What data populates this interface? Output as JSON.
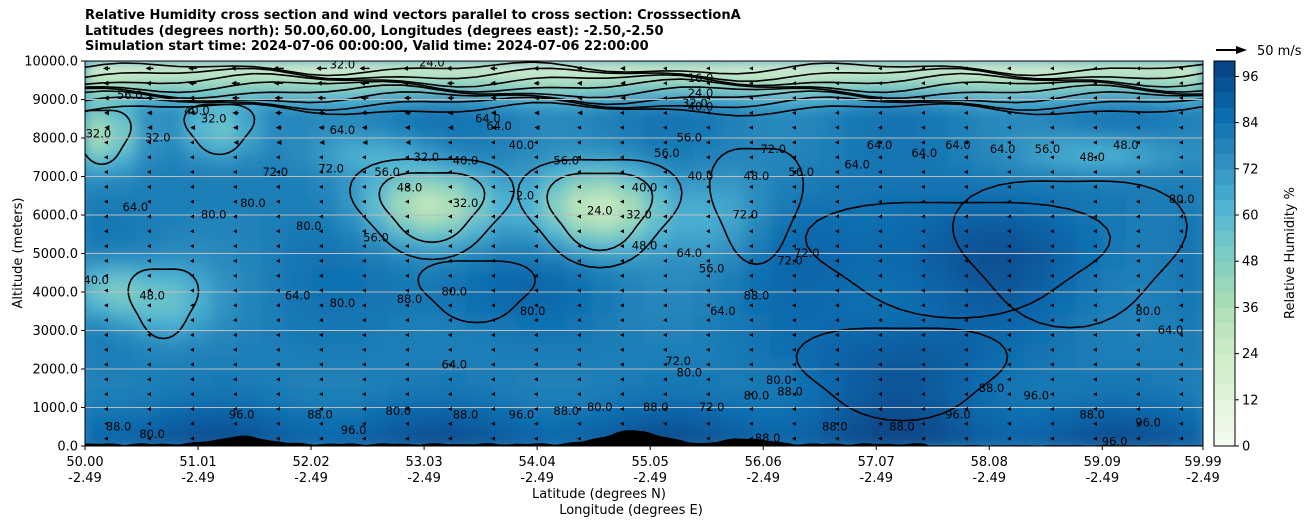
{
  "title_lines": [
    "Relative Humidity cross section and wind vectors parallel to cross section: CrosssectionA",
    "Latitudes (degrees north): 50.00,60.00, Longitudes (degrees east): -2.50,-2.50",
    "Simulation start time: 2024-07-06 00:00:00, Valid time: 2024-07-06 22:00:00"
  ],
  "chart_data": {
    "type": "contour_cross_section",
    "x_ticks": [
      {
        "lat": "50.00",
        "lon": "-2.49"
      },
      {
        "lat": "51.01",
        "lon": "-2.49"
      },
      {
        "lat": "52.02",
        "lon": "-2.49"
      },
      {
        "lat": "53.03",
        "lon": "-2.49"
      },
      {
        "lat": "54.04",
        "lon": "-2.49"
      },
      {
        "lat": "55.05",
        "lon": "-2.49"
      },
      {
        "lat": "56.06",
        "lon": "-2.49"
      },
      {
        "lat": "57.07",
        "lon": "-2.49"
      },
      {
        "lat": "58.08",
        "lon": "-2.49"
      },
      {
        "lat": "59.09",
        "lon": "-2.49"
      },
      {
        "lat": "59.99",
        "lon": "-2.49"
      }
    ],
    "xlim": [
      50.0,
      59.99
    ],
    "xlabel_line1": "Latitude (degrees N)",
    "xlabel_line2": "Longitude (degrees E)",
    "ylabel": "Altitude (meters)",
    "ylim": [
      0,
      10000
    ],
    "y_ticks": [
      "0.0",
      "1000.0",
      "2000.0",
      "3000.0",
      "4000.0",
      "5000.0",
      "6000.0",
      "7000.0",
      "8000.0",
      "9000.0",
      "10000.0"
    ],
    "grid": "horizontal",
    "colorbar": {
      "label": "Relative Humidity %",
      "min": 0,
      "max": 100,
      "levels_step": 4,
      "ticks": [
        "0",
        "12",
        "24",
        "36",
        "48",
        "60",
        "72",
        "84",
        "96"
      ],
      "colormap": "GnBu",
      "stops": [
        "#f7fcf0",
        "#e0f3db",
        "#ccebc5",
        "#a8ddb5",
        "#7bccc4",
        "#4eb3d3",
        "#2b8cbe",
        "#0868ac",
        "#084081"
      ]
    },
    "wind_key": {
      "label": "50 m/s",
      "value": 50
    },
    "contour_labels": [
      {
        "lat": 50.12,
        "z": 8100,
        "text": "32.0"
      },
      {
        "lat": 50.4,
        "z": 9100,
        "text": "56.0"
      },
      {
        "lat": 50.65,
        "z": 8000,
        "text": "32.0"
      },
      {
        "lat": 51.0,
        "z": 8700,
        "text": "40.0"
      },
      {
        "lat": 51.15,
        "z": 8500,
        "text": "32.0"
      },
      {
        "lat": 50.45,
        "z": 6200,
        "text": "64.0"
      },
      {
        "lat": 51.15,
        "z": 6000,
        "text": "80.0"
      },
      {
        "lat": 51.5,
        "z": 6300,
        "text": "80.0"
      },
      {
        "lat": 52.2,
        "z": 7200,
        "text": "72.0"
      },
      {
        "lat": 51.7,
        "z": 7100,
        "text": "72.0"
      },
      {
        "lat": 52.3,
        "z": 8200,
        "text": "64.0"
      },
      {
        "lat": 50.1,
        "z": 4300,
        "text": "40.0"
      },
      {
        "lat": 50.6,
        "z": 3900,
        "text": "48.0"
      },
      {
        "lat": 51.9,
        "z": 3900,
        "text": "64.0"
      },
      {
        "lat": 52.3,
        "z": 3700,
        "text": "80.0"
      },
      {
        "lat": 52.0,
        "z": 5700,
        "text": "80.0"
      },
      {
        "lat": 52.6,
        "z": 5400,
        "text": "56.0"
      },
      {
        "lat": 52.7,
        "z": 7100,
        "text": "56.0"
      },
      {
        "lat": 53.05,
        "z": 7500,
        "text": "32.0"
      },
      {
        "lat": 52.9,
        "z": 6700,
        "text": "48.0"
      },
      {
        "lat": 53.4,
        "z": 7400,
        "text": "40.0"
      },
      {
        "lat": 53.4,
        "z": 6300,
        "text": "32.0"
      },
      {
        "lat": 53.9,
        "z": 7800,
        "text": "40.0"
      },
      {
        "lat": 53.7,
        "z": 8300,
        "text": "64.0"
      },
      {
        "lat": 54.3,
        "z": 7400,
        "text": "56.0"
      },
      {
        "lat": 53.9,
        "z": 6500,
        "text": "72.0"
      },
      {
        "lat": 54.6,
        "z": 6100,
        "text": "24.0"
      },
      {
        "lat": 55.0,
        "z": 6700,
        "text": "40.0"
      },
      {
        "lat": 55.0,
        "z": 5200,
        "text": "48.0"
      },
      {
        "lat": 54.95,
        "z": 6000,
        "text": "32.0"
      },
      {
        "lat": 55.2,
        "z": 7600,
        "text": "56.0"
      },
      {
        "lat": 55.4,
        "z": 8000,
        "text": "56.0"
      },
      {
        "lat": 55.4,
        "z": 5000,
        "text": "64.0"
      },
      {
        "lat": 55.6,
        "z": 4600,
        "text": "56.0"
      },
      {
        "lat": 55.5,
        "z": 7000,
        "text": "40.0"
      },
      {
        "lat": 55.9,
        "z": 6000,
        "text": "72.0"
      },
      {
        "lat": 56.15,
        "z": 7700,
        "text": "72.0"
      },
      {
        "lat": 56.0,
        "z": 7000,
        "text": "48.0"
      },
      {
        "lat": 56.45,
        "z": 5000,
        "text": "72.0"
      },
      {
        "lat": 56.4,
        "z": 7100,
        "text": "56.0"
      },
      {
        "lat": 55.7,
        "z": 3500,
        "text": "64.0"
      },
      {
        "lat": 56.0,
        "z": 3900,
        "text": "88.0"
      },
      {
        "lat": 56.9,
        "z": 7300,
        "text": "64.0"
      },
      {
        "lat": 57.1,
        "z": 7800,
        "text": "64.0"
      },
      {
        "lat": 57.5,
        "z": 7600,
        "text": "64.0"
      },
      {
        "lat": 57.8,
        "z": 7800,
        "text": "64.0"
      },
      {
        "lat": 58.2,
        "z": 7700,
        "text": "64.0"
      },
      {
        "lat": 58.6,
        "z": 7700,
        "text": "56.0"
      },
      {
        "lat": 59.0,
        "z": 7500,
        "text": "48.0"
      },
      {
        "lat": 59.3,
        "z": 7800,
        "text": "48.0"
      },
      {
        "lat": 59.8,
        "z": 6400,
        "text": "80.0"
      },
      {
        "lat": 59.5,
        "z": 3500,
        "text": "80.0"
      },
      {
        "lat": 59.7,
        "z": 3000,
        "text": "64.0"
      },
      {
        "lat": 53.3,
        "z": 4000,
        "text": "80.0"
      },
      {
        "lat": 52.9,
        "z": 3800,
        "text": "88.0"
      },
      {
        "lat": 54.0,
        "z": 3500,
        "text": "80.0"
      },
      {
        "lat": 53.3,
        "z": 2100,
        "text": "64.0"
      },
      {
        "lat": 55.3,
        "z": 2200,
        "text": "72.0"
      },
      {
        "lat": 55.4,
        "z": 1900,
        "text": "80.0"
      },
      {
        "lat": 55.6,
        "z": 1000,
        "text": "72.0"
      },
      {
        "lat": 56.0,
        "z": 1300,
        "text": "80.0"
      },
      {
        "lat": 56.2,
        "z": 1700,
        "text": "80.0"
      },
      {
        "lat": 56.3,
        "z": 1400,
        "text": "88.0"
      },
      {
        "lat": 55.1,
        "z": 1000,
        "text": "88.0"
      },
      {
        "lat": 54.6,
        "z": 1000,
        "text": "80.0"
      },
      {
        "lat": 54.3,
        "z": 900,
        "text": "88.0"
      },
      {
        "lat": 53.9,
        "z": 800,
        "text": "96.0"
      },
      {
        "lat": 53.4,
        "z": 800,
        "text": "88.0"
      },
      {
        "lat": 52.8,
        "z": 900,
        "text": "80.0"
      },
      {
        "lat": 52.1,
        "z": 800,
        "text": "88.0"
      },
      {
        "lat": 51.4,
        "z": 800,
        "text": "96.0"
      },
      {
        "lat": 50.6,
        "z": 300,
        "text": "80.0"
      },
      {
        "lat": 50.3,
        "z": 500,
        "text": "88.0"
      },
      {
        "lat": 52.4,
        "z": 400,
        "text": "96.0"
      },
      {
        "lat": 56.1,
        "z": 200,
        "text": "88.0"
      },
      {
        "lat": 56.7,
        "z": 500,
        "text": "88.0"
      },
      {
        "lat": 57.8,
        "z": 800,
        "text": "96.0"
      },
      {
        "lat": 57.3,
        "z": 500,
        "text": "88.0"
      },
      {
        "lat": 58.1,
        "z": 1500,
        "text": "88.0"
      },
      {
        "lat": 58.5,
        "z": 1300,
        "text": "96.0"
      },
      {
        "lat": 59.0,
        "z": 800,
        "text": "88.0"
      },
      {
        "lat": 59.5,
        "z": 600,
        "text": "96.0"
      },
      {
        "lat": 59.2,
        "z": 100,
        "text": "96.0"
      },
      {
        "lat": 53.6,
        "z": 8500,
        "text": "64.0"
      },
      {
        "lat": 52.3,
        "z": 9900,
        "text": "32.0"
      },
      {
        "lat": 53.1,
        "z": 9950,
        "text": "24.0"
      },
      {
        "lat": 55.5,
        "z": 9550,
        "text": "16.0"
      },
      {
        "lat": 55.5,
        "z": 9150,
        "text": "24.0"
      },
      {
        "lat": 55.45,
        "z": 8900,
        "text": "32.0"
      },
      {
        "lat": 55.5,
        "z": 8800,
        "text": "40.0"
      },
      {
        "lat": 56.3,
        "z": 4800,
        "text": "72.0"
      }
    ]
  }
}
